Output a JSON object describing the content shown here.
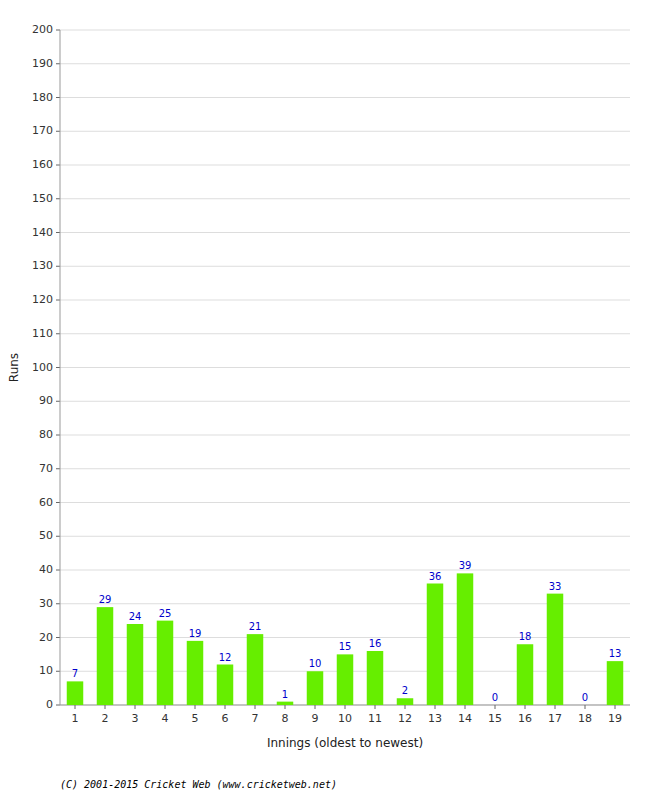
{
  "chart_data": {
    "type": "bar",
    "xlabel": "Innings (oldest to newest)",
    "ylabel": "Runs",
    "categories": [
      "1",
      "2",
      "3",
      "4",
      "5",
      "6",
      "7",
      "8",
      "9",
      "10",
      "11",
      "12",
      "13",
      "14",
      "15",
      "16",
      "17",
      "18",
      "19"
    ],
    "values": [
      7,
      29,
      24,
      25,
      19,
      12,
      21,
      1,
      10,
      15,
      16,
      2,
      36,
      39,
      0,
      18,
      33,
      0,
      13
    ],
    "color": "#66ee00",
    "ylim": [
      0,
      200
    ],
    "yticks": [
      0,
      10,
      20,
      30,
      40,
      50,
      60,
      70,
      80,
      90,
      100,
      110,
      120,
      130,
      140,
      150,
      160,
      170,
      180,
      190,
      200
    ],
    "grid": true,
    "data_labels": true,
    "annotations": [
      "(C) 2001-2015 Cricket Web (www.cricketweb.net)"
    ]
  }
}
